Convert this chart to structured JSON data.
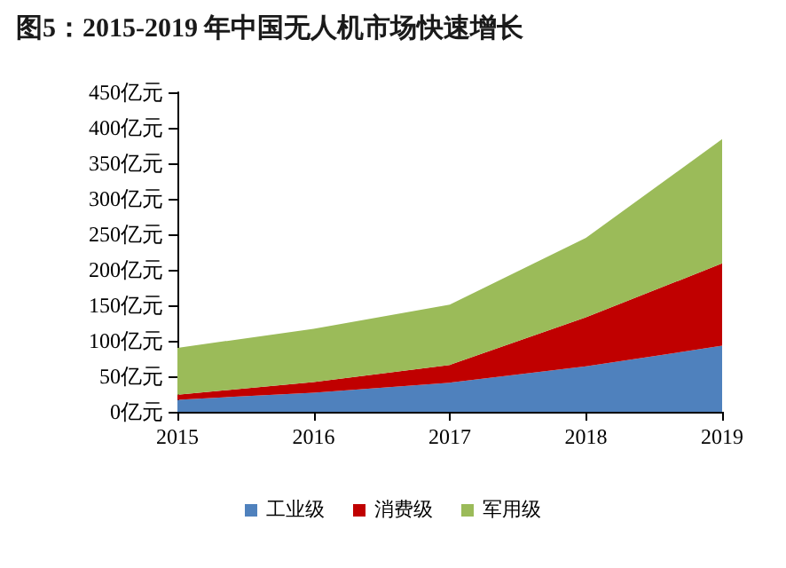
{
  "chart_data": {
    "type": "area",
    "stacked": true,
    "title": "图5：2015-2019 年中国无人机市场快速增长",
    "categories": [
      "2015",
      "2016",
      "2017",
      "2018",
      "2019"
    ],
    "series": [
      {
        "name": "工业级",
        "color": "#4f81bd",
        "values": [
          17,
          27,
          41,
          64,
          93
        ]
      },
      {
        "name": "消费级",
        "color": "#c00000",
        "values": [
          7,
          15,
          25,
          69,
          116
        ]
      },
      {
        "name": "军用级",
        "color": "#9bbb59",
        "values": [
          66,
          75,
          85,
          112,
          175
        ]
      }
    ],
    "ylim": [
      0,
      450
    ],
    "yticks": [
      {
        "value": 0,
        "label": "0亿元"
      },
      {
        "value": 50,
        "label": "50亿元"
      },
      {
        "value": 100,
        "label": "100亿元"
      },
      {
        "value": 150,
        "label": "150亿元"
      },
      {
        "value": 200,
        "label": "200亿元"
      },
      {
        "value": 250,
        "label": "250亿元"
      },
      {
        "value": 300,
        "label": "300亿元"
      },
      {
        "value": 350,
        "label": "350亿元"
      },
      {
        "value": 400,
        "label": "400亿元"
      },
      {
        "value": 450,
        "label": "450亿元"
      }
    ],
    "grid": false,
    "legend": "bottom"
  }
}
